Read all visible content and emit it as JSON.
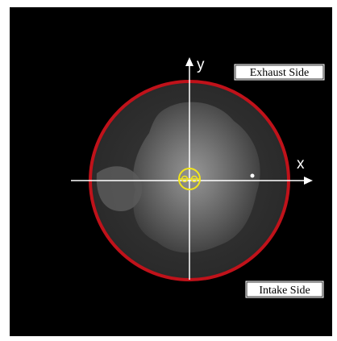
{
  "labels": {
    "exhaust_side": "Exhaust Side",
    "intake_side": "Intake Side",
    "x_axis": "x",
    "y_axis": "y"
  },
  "icons": {
    "injector_marker": "injector-symbol-icon"
  },
  "colors": {
    "background": "#000000",
    "cylinder_outline": "#c0121a",
    "axes": "#ffffff",
    "marker": "#f2e51c",
    "flame": "#7a7a7a"
  }
}
